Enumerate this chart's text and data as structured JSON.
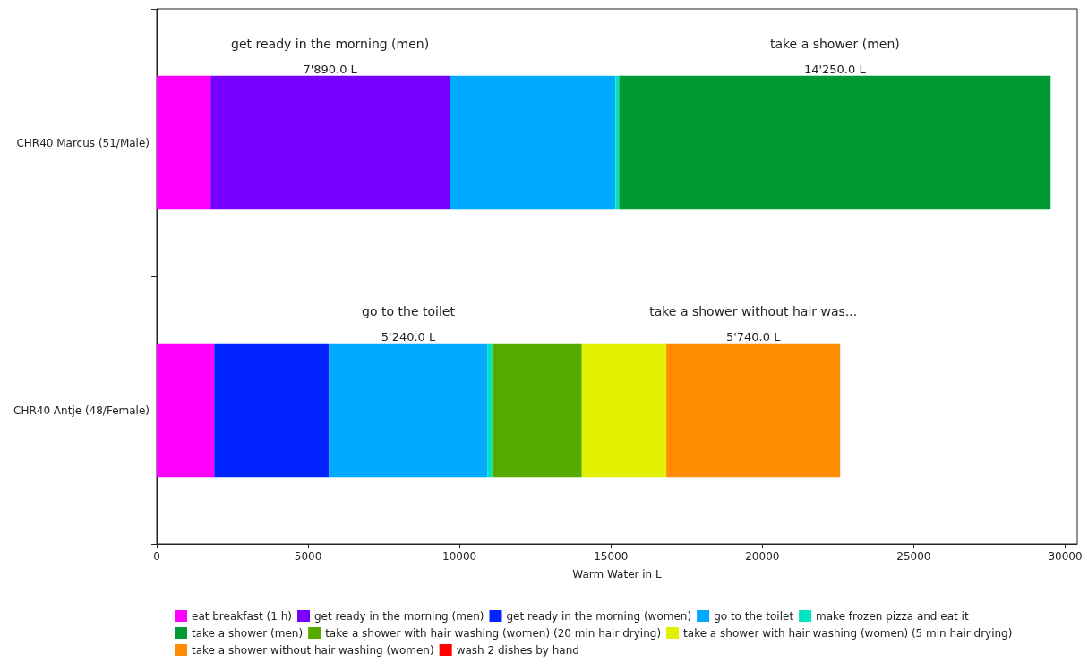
{
  "chart_data": {
    "type": "bar",
    "orientation": "horizontal",
    "stacked": true,
    "xlabel": "Warm Water in L",
    "categories": [
      "CHR40 Marcus (51/Male)",
      "CHR40 Antje (48/Female)"
    ],
    "xlim": [
      0,
      30400
    ],
    "xticks": [
      0,
      5000,
      10000,
      15000,
      20000,
      25000,
      30000
    ],
    "series": [
      {
        "name": "eat breakfast (1 h)",
        "color": "#ff00ff",
        "values": [
          1780,
          1900
        ]
      },
      {
        "name": "get ready in the morning (men)",
        "color": "#7700ff",
        "values": [
          7890,
          null
        ],
        "value_labels": [
          "7'890.0 L",
          null
        ]
      },
      {
        "name": "get ready in the morning (women)",
        "color": "#0022ff",
        "values": [
          null,
          3790
        ]
      },
      {
        "name": "go to the toilet",
        "color": "#00aaff",
        "values": [
          5480,
          5240
        ],
        "value_labels": [
          null,
          "5'240.0 L"
        ]
      },
      {
        "name": "make frozen pizza and eat it",
        "color": "#00e5c0",
        "values": [
          120,
          150
        ]
      },
      {
        "name": "take a shower (men)",
        "color": "#009933",
        "values": [
          14250,
          null
        ],
        "value_labels": [
          "14'250.0 L",
          null
        ]
      },
      {
        "name": "take a shower with hair washing (women) (20 min hair drying)",
        "color": "#55aa00",
        "values": [
          null,
          2960
        ]
      },
      {
        "name": "take a shower with hair washing (women) (5 min hair drying)",
        "color": "#e0f000",
        "values": [
          null,
          2790
        ]
      },
      {
        "name": "take a shower without hair washing (women)",
        "color": "#ff8c00",
        "values": [
          null,
          5740
        ],
        "value_labels": [
          null,
          "5'740.0 L"
        ]
      },
      {
        "name": "wash 2 dishes by hand",
        "color": "#ff0000",
        "values": [
          null,
          null
        ]
      }
    ],
    "annotations": [
      "get ready in the morning (men)",
      "take a shower (men)",
      "go to the toilet",
      "take a shower without hair was..."
    ],
    "grid": false,
    "legend": "bottom"
  }
}
